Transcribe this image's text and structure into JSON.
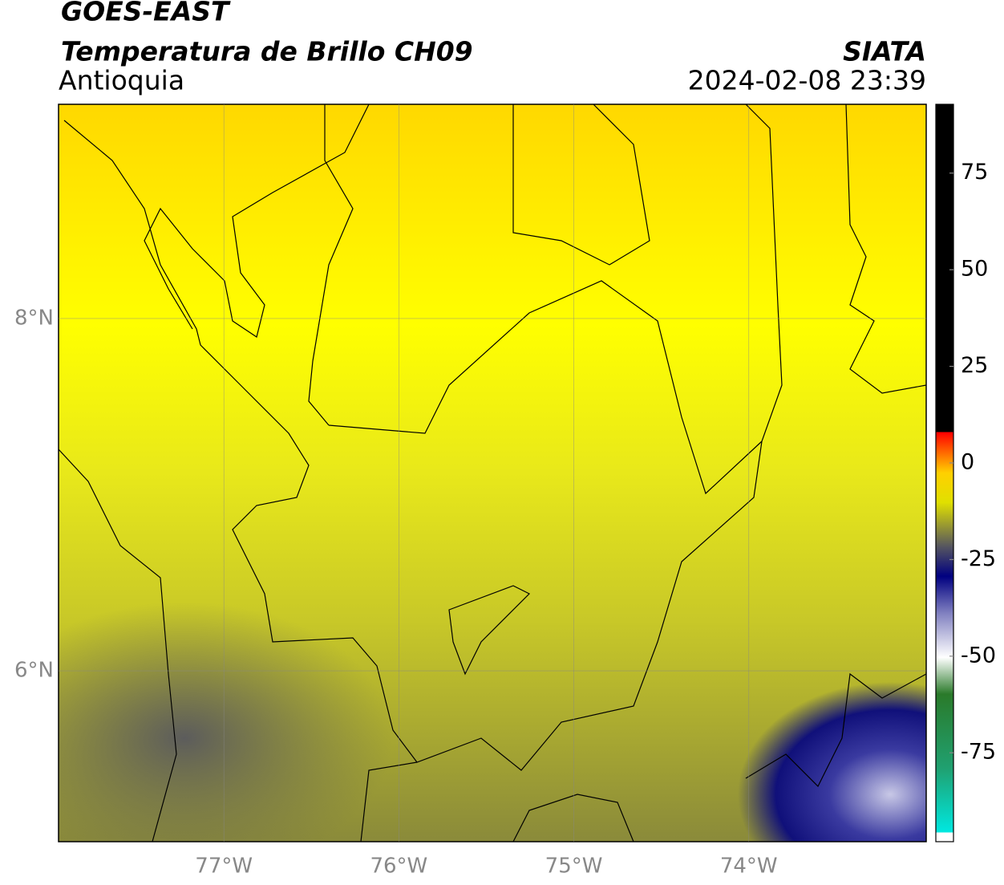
{
  "header": {
    "title": "GOES-EAST",
    "subtitle": "Temperatura de Brillo CH09",
    "region": "Antioquia",
    "source": "SIATA",
    "datetime": "2024-02-08 23:39"
  },
  "map": {
    "xlim": [
      -77.945,
      -72.986
    ],
    "ylim": [
      5.03,
      9.216
    ],
    "xticks": [
      {
        "value": -77,
        "label": "77°W"
      },
      {
        "value": -76,
        "label": "76°W"
      },
      {
        "value": -75,
        "label": "75°W"
      },
      {
        "value": -74,
        "label": "74°W"
      }
    ],
    "yticks": [
      {
        "value": 6,
        "label": "6°N"
      },
      {
        "value": 8,
        "label": "8°N"
      }
    ],
    "grid": true
  },
  "colorbar": {
    "lim": [
      -98,
      92.8
    ],
    "ticks": [
      -75,
      -50,
      -25,
      0,
      25,
      50,
      75
    ]
  }
}
